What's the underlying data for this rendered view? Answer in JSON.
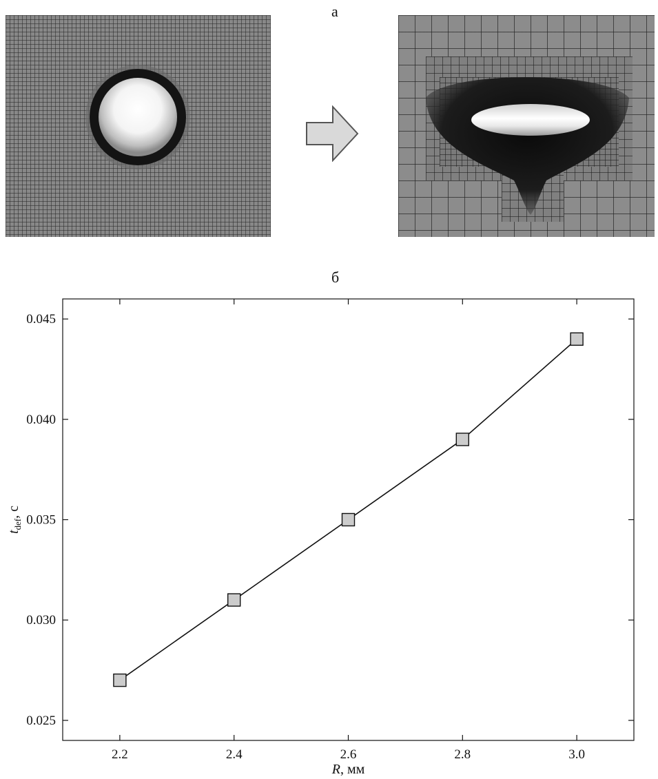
{
  "figure": {
    "panel_a_label": "а",
    "panel_b_label": "б"
  },
  "chart_data": {
    "type": "line",
    "x": [
      2.2,
      2.4,
      2.6,
      2.8,
      3.0
    ],
    "y": [
      0.027,
      0.031,
      0.035,
      0.039,
      0.044
    ],
    "xlim": [
      2.1,
      3.1
    ],
    "ylim": [
      0.024,
      0.046
    ],
    "xticks": [
      2.2,
      2.4,
      2.6,
      2.8,
      3.0
    ],
    "yticks": [
      0.025,
      0.03,
      0.035,
      0.04,
      0.045
    ],
    "xtick_labels": [
      "2.2",
      "2.4",
      "2.6",
      "2.8",
      "3.0"
    ],
    "ytick_labels": [
      "0.025",
      "0.030",
      "0.035",
      "0.040",
      "0.045"
    ],
    "xlabel": {
      "var": "R",
      "unit": ", мм"
    },
    "ylabel": {
      "var": "t",
      "sub": "def",
      "unit": ", с"
    },
    "grid": false,
    "marker": "square",
    "marker_fill": "#cccccc",
    "line_color": "#111111"
  }
}
